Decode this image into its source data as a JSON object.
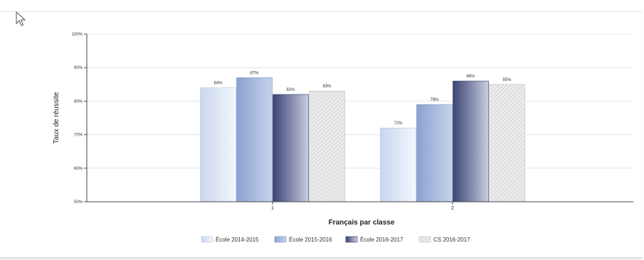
{
  "chart_data": {
    "type": "bar",
    "categories": [
      "1",
      "2"
    ],
    "series": [
      {
        "name": "École 2014-2015",
        "values": [
          84,
          72
        ],
        "labels": [
          "84%",
          "72%"
        ],
        "color": "#dfe7f5"
      },
      {
        "name": "École 2015-2016",
        "values": [
          87,
          79
        ],
        "labels": [
          "87%",
          "79%"
        ],
        "color": "#9fb3d9"
      },
      {
        "name": "École 2016-2017",
        "values": [
          82,
          86
        ],
        "labels": [
          "82%",
          "86%"
        ],
        "color": "#4a5584"
      },
      {
        "name": "CS 2016-2017",
        "values": [
          83,
          85
        ],
        "labels": [
          "83%",
          "85%"
        ],
        "color": "#e0e0e0"
      }
    ],
    "title": "",
    "xlabel": "Français par classe",
    "ylabel": "Taux de réussite",
    "ylim": [
      50,
      100
    ],
    "yticks": [
      50,
      60,
      70,
      80,
      90,
      100
    ],
    "ytick_labels": [
      "50%",
      "60%",
      "70%",
      "80%",
      "90%",
      "100%"
    ],
    "grid": true,
    "legend": "bottom"
  }
}
